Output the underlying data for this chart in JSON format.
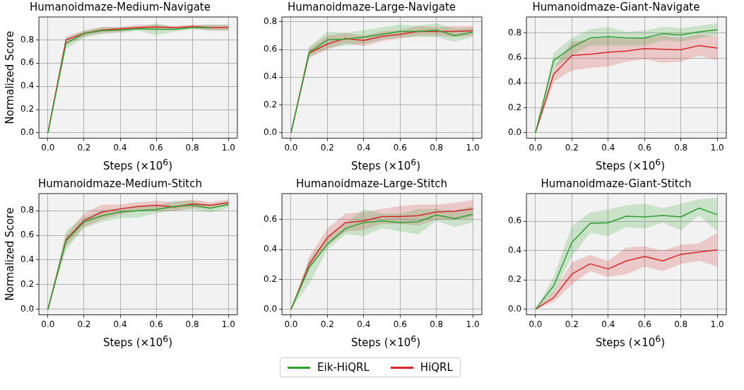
{
  "chart_data": [
    {
      "type": "line",
      "title": "Humanoidmaze-Medium-Navigate",
      "xlabel": "Steps (×10$^{6}$)",
      "ylabel": "Normalized Score",
      "x": [
        0,
        0.1,
        0.2,
        0.3,
        0.4,
        0.5,
        0.6,
        0.7,
        0.8,
        0.9,
        1.0
      ],
      "xlim": [
        -0.05,
        1.05
      ],
      "ylim": [
        -0.047,
        0.997
      ],
      "xticks": [
        {
          "value": 0,
          "label": "0.0"
        },
        {
          "value": 0.2,
          "label": "0.2"
        },
        {
          "value": 0.4,
          "label": "0.4"
        },
        {
          "value": 0.6,
          "label": "0.6"
        },
        {
          "value": 0.8,
          "label": "0.8"
        },
        {
          "value": 1,
          "label": "1.0"
        }
      ],
      "yticks": [
        {
          "value": 0,
          "label": "0.0"
        },
        {
          "value": 0.2,
          "label": "0.2"
        },
        {
          "value": 0.4,
          "label": "0.4"
        },
        {
          "value": 0.6,
          "label": "0.6"
        },
        {
          "value": 0.8,
          "label": "0.8"
        }
      ],
      "grid": true,
      "marker": "none",
      "line_style": "solid",
      "series": [
        {
          "color": "#2ca02c",
          "values": [
            0,
            0.77,
            0.855,
            0.88,
            0.885,
            0.895,
            0.89,
            0.89,
            0.905,
            0.905,
            null
          ],
          "lower": [
            0,
            0.72,
            0.82,
            0.85,
            0.86,
            0.88,
            0.84,
            0.87,
            0.89,
            0.88,
            0.88
          ],
          "upper": [
            0,
            0.81,
            0.88,
            0.91,
            0.91,
            0.91,
            0.94,
            0.91,
            0.92,
            0.93,
            0.93
          ]
        },
        {
          "color": "#d62728",
          "values": [
            0,
            0.8,
            0.855,
            0.885,
            0.895,
            0.905,
            0.91,
            0.905,
            0.915,
            0.905,
            0.905
          ],
          "lower": [
            0,
            0.76,
            0.83,
            0.86,
            0.87,
            0.89,
            0.89,
            0.89,
            0.9,
            0.88,
            0.88
          ],
          "upper": [
            0,
            0.83,
            0.88,
            0.91,
            0.91,
            0.93,
            0.93,
            0.92,
            0.93,
            0.93,
            0.93
          ]
        }
      ]
    },
    {
      "type": "line",
      "title": "Humanoidmaze-Large-Navigate",
      "xlabel": "Steps (×10$^{6}$)",
      "x": [
        0,
        0.1,
        0.2,
        0.3,
        0.4,
        0.5,
        0.6,
        0.7,
        0.8,
        0.9,
        1.0
      ],
      "xlim": [
        -0.05,
        1.05
      ],
      "ylim": [
        -0.04,
        0.835
      ],
      "xticks": [
        {
          "value": 0,
          "label": "0.0"
        },
        {
          "value": 0.2,
          "label": "0.2"
        },
        {
          "value": 0.4,
          "label": "0.4"
        },
        {
          "value": 0.6,
          "label": "0.6"
        },
        {
          "value": 0.8,
          "label": "0.8"
        },
        {
          "value": 1,
          "label": "1.0"
        }
      ],
      "yticks": [
        {
          "value": 0,
          "label": "0.0"
        },
        {
          "value": 0.2,
          "label": "0.2"
        },
        {
          "value": 0.4,
          "label": "0.4"
        },
        {
          "value": 0.6,
          "label": "0.6"
        },
        {
          "value": 0.8,
          "label": "0.8"
        }
      ],
      "grid": true,
      "marker": "none",
      "line_style": "solid",
      "series": [
        {
          "color": "#2ca02c",
          "values": [
            0,
            0.58,
            0.67,
            0.675,
            0.69,
            0.71,
            0.73,
            0.73,
            0.74,
            0.7,
            0.725
          ],
          "lower": [
            0,
            0.55,
            0.61,
            0.63,
            0.64,
            0.67,
            0.69,
            0.69,
            0.69,
            0.655,
            0.69
          ],
          "upper": [
            0,
            0.62,
            0.73,
            0.72,
            0.74,
            0.76,
            0.78,
            0.77,
            0.79,
            0.75,
            0.76
          ]
        },
        {
          "color": "#d62728",
          "values": [
            0,
            0.575,
            0.64,
            0.68,
            0.665,
            0.695,
            0.71,
            0.73,
            0.73,
            0.73,
            0.735
          ],
          "lower": [
            0,
            0.54,
            0.6,
            0.645,
            0.625,
            0.66,
            0.68,
            0.7,
            0.7,
            0.69,
            0.7
          ],
          "upper": [
            0,
            0.61,
            0.7,
            0.72,
            0.7,
            0.73,
            0.74,
            0.77,
            0.76,
            0.77,
            0.77
          ]
        }
      ]
    },
    {
      "type": "line",
      "title": "Humanoidmaze-Giant-Navigate",
      "xlabel": "Steps (×10$^{6}$)",
      "x": [
        0,
        0.1,
        0.2,
        0.3,
        0.4,
        0.5,
        0.6,
        0.7,
        0.8,
        0.9,
        1.0
      ],
      "xlim": [
        -0.05,
        1.05
      ],
      "ylim": [
        -0.044,
        0.929
      ],
      "xticks": [
        {
          "value": 0,
          "label": "0.0"
        },
        {
          "value": 0.2,
          "label": "0.2"
        },
        {
          "value": 0.4,
          "label": "0.4"
        },
        {
          "value": 0.6,
          "label": "0.6"
        },
        {
          "value": 0.8,
          "label": "0.8"
        },
        {
          "value": 1,
          "label": "1.0"
        }
      ],
      "yticks": [
        {
          "value": 0,
          "label": "0.0"
        },
        {
          "value": 0.2,
          "label": "0.2"
        },
        {
          "value": 0.4,
          "label": "0.4"
        },
        {
          "value": 0.6,
          "label": "0.6"
        },
        {
          "value": 0.8,
          "label": "0.8"
        }
      ],
      "grid": true,
      "marker": "none",
      "line_style": "solid",
      "series": [
        {
          "color": "#2ca02c",
          "values": [
            0,
            0.58,
            0.685,
            0.76,
            0.77,
            0.76,
            0.76,
            0.795,
            0.785,
            0.81,
            0.825
          ],
          "lower": [
            0,
            0.52,
            0.62,
            0.7,
            0.7,
            0.7,
            0.7,
            0.74,
            0.73,
            0.76,
            0.78
          ],
          "upper": [
            0,
            0.64,
            0.76,
            0.83,
            0.85,
            0.81,
            0.82,
            0.85,
            0.84,
            0.86,
            0.88
          ]
        },
        {
          "color": "#d62728",
          "values": [
            0,
            0.47,
            0.62,
            0.63,
            0.645,
            0.655,
            0.675,
            0.67,
            0.665,
            0.7,
            0.68
          ],
          "lower": [
            0,
            0.41,
            0.5,
            0.52,
            0.53,
            0.57,
            0.59,
            0.56,
            0.57,
            0.62,
            0.58
          ],
          "upper": [
            0,
            0.52,
            0.73,
            0.75,
            0.76,
            0.75,
            0.76,
            0.78,
            0.76,
            0.79,
            0.77
          ]
        }
      ]
    },
    {
      "type": "line",
      "title": "Humanoidmaze-Medium-Stitch",
      "xlabel": "Steps (×10$^{6}$)",
      "ylabel": "Normalized Score",
      "x": [
        0,
        0.1,
        0.2,
        0.3,
        0.4,
        0.5,
        0.6,
        0.7,
        0.8,
        0.9,
        1.0
      ],
      "xlim": [
        -0.05,
        1.05
      ],
      "ylim": [
        -0.045,
        0.939
      ],
      "xticks": [
        {
          "value": 0,
          "label": "0.0"
        },
        {
          "value": 0.2,
          "label": "0.2"
        },
        {
          "value": 0.4,
          "label": "0.4"
        },
        {
          "value": 0.6,
          "label": "0.6"
        },
        {
          "value": 0.8,
          "label": "0.8"
        },
        {
          "value": 1,
          "label": "1.0"
        }
      ],
      "yticks": [
        {
          "value": 0,
          "label": "0.0"
        },
        {
          "value": 0.2,
          "label": "0.2"
        },
        {
          "value": 0.4,
          "label": "0.4"
        },
        {
          "value": 0.6,
          "label": "0.6"
        },
        {
          "value": 0.8,
          "label": "0.8"
        }
      ],
      "grid": true,
      "marker": "none",
      "line_style": "solid",
      "series": [
        {
          "color": "#2ca02c",
          "values": [
            0,
            0.555,
            0.71,
            0.76,
            0.79,
            0.8,
            0.81,
            0.835,
            0.845,
            0.82,
            0.85
          ],
          "lower": [
            0,
            0.48,
            0.66,
            0.71,
            0.74,
            0.745,
            0.78,
            0.8,
            0.81,
            0.785,
            0.82
          ],
          "upper": [
            0,
            0.64,
            0.75,
            0.8,
            0.82,
            0.84,
            0.84,
            0.88,
            0.88,
            0.85,
            0.88
          ]
        },
        {
          "color": "#d62728",
          "values": [
            0,
            0.565,
            0.72,
            0.79,
            0.815,
            0.835,
            0.845,
            0.83,
            0.855,
            0.845,
            0.865
          ],
          "lower": [
            0,
            0.51,
            0.67,
            0.73,
            0.77,
            0.8,
            0.8,
            0.8,
            0.82,
            0.82,
            0.84
          ],
          "upper": [
            0,
            0.6,
            0.78,
            0.85,
            0.85,
            0.87,
            0.88,
            0.87,
            0.89,
            0.87,
            0.89
          ]
        }
      ]
    },
    {
      "type": "line",
      "title": "Humanoidmaze-Large-Stitch",
      "xlabel": "Steps (×10$^{6}$)",
      "x": [
        0,
        0.1,
        0.2,
        0.3,
        0.4,
        0.5,
        0.6,
        0.7,
        0.8,
        0.9,
        1.0
      ],
      "xlim": [
        -0.05,
        1.05
      ],
      "ylim": [
        -0.037,
        0.773
      ],
      "xticks": [
        {
          "value": 0,
          "label": "0.0"
        },
        {
          "value": 0.2,
          "label": "0.2"
        },
        {
          "value": 0.4,
          "label": "0.4"
        },
        {
          "value": 0.6,
          "label": "0.6"
        },
        {
          "value": 0.8,
          "label": "0.8"
        },
        {
          "value": 1,
          "label": "1.0"
        }
      ],
      "yticks": [
        {
          "value": 0,
          "label": "0.0"
        },
        {
          "value": 0.2,
          "label": "0.2"
        },
        {
          "value": 0.4,
          "label": "0.4"
        },
        {
          "value": 0.6,
          "label": "0.6"
        }
      ],
      "grid": true,
      "marker": "none",
      "line_style": "solid",
      "legend": "bottom",
      "series": [
        {
          "name": "Eik-HiQRL",
          "color": "#2ca02c",
          "values": [
            0,
            0.28,
            0.435,
            0.54,
            0.58,
            0.59,
            0.58,
            0.585,
            0.63,
            0.605,
            0.635
          ],
          "lower": [
            0,
            0.17,
            0.4,
            0.5,
            0.49,
            0.54,
            0.52,
            0.5,
            0.59,
            0.55,
            0.58
          ],
          "upper": [
            0,
            0.33,
            0.48,
            0.57,
            0.67,
            0.64,
            0.64,
            0.67,
            0.67,
            0.66,
            0.69
          ]
        },
        {
          "name": "HiQRL",
          "color": "#d62728",
          "values": [
            0,
            0.3,
            0.48,
            0.58,
            0.59,
            0.62,
            0.62,
            0.625,
            0.65,
            0.655,
            0.67
          ],
          "lower": [
            0,
            0.27,
            0.43,
            0.52,
            0.53,
            0.57,
            0.57,
            0.56,
            0.6,
            0.6,
            0.61
          ],
          "upper": [
            0,
            0.35,
            0.54,
            0.64,
            0.65,
            0.67,
            0.69,
            0.7,
            0.7,
            0.71,
            0.73
          ]
        }
      ]
    },
    {
      "type": "line",
      "title": "Humanoidmaze-Giant-Stitch",
      "xlabel": "Steps (×10$^{6}$)",
      "x": [
        0,
        0.1,
        0.2,
        0.3,
        0.4,
        0.5,
        0.6,
        0.7,
        0.8,
        0.9,
        1.0
      ],
      "xlim": [
        -0.05,
        1.05
      ],
      "ylim": [
        -0.038,
        0.789
      ],
      "xticks": [
        {
          "value": 0,
          "label": "0.0"
        },
        {
          "value": 0.2,
          "label": "0.2"
        },
        {
          "value": 0.4,
          "label": "0.4"
        },
        {
          "value": 0.6,
          "label": "0.6"
        },
        {
          "value": 0.8,
          "label": "0.8"
        },
        {
          "value": 1,
          "label": "1.0"
        }
      ],
      "yticks": [
        {
          "value": 0,
          "label": "0.0"
        },
        {
          "value": 0.2,
          "label": "0.2"
        },
        {
          "value": 0.4,
          "label": "0.4"
        },
        {
          "value": 0.6,
          "label": "0.6"
        }
      ],
      "grid": true,
      "marker": "none",
      "line_style": "solid",
      "series": [
        {
          "color": "#2ca02c",
          "values": [
            0,
            0.16,
            0.455,
            0.585,
            0.59,
            0.635,
            0.63,
            0.64,
            0.63,
            0.69,
            0.645
          ],
          "lower": [
            0,
            0.11,
            0.36,
            0.52,
            0.5,
            0.56,
            0.55,
            0.59,
            0.54,
            0.64,
            0.53
          ],
          "upper": [
            0,
            0.22,
            0.57,
            0.66,
            0.68,
            0.71,
            0.72,
            0.69,
            0.72,
            0.75,
            0.76
          ]
        },
        {
          "color": "#d62728",
          "values": [
            0,
            0.08,
            0.24,
            0.31,
            0.275,
            0.33,
            0.36,
            0.33,
            0.375,
            0.39,
            0.405
          ],
          "lower": [
            0,
            0.05,
            0.17,
            0.26,
            0.22,
            0.24,
            0.29,
            0.26,
            0.31,
            0.33,
            0.29
          ],
          "upper": [
            0,
            0.12,
            0.32,
            0.37,
            0.33,
            0.42,
            0.43,
            0.4,
            0.44,
            0.45,
            0.52
          ]
        }
      ]
    }
  ]
}
